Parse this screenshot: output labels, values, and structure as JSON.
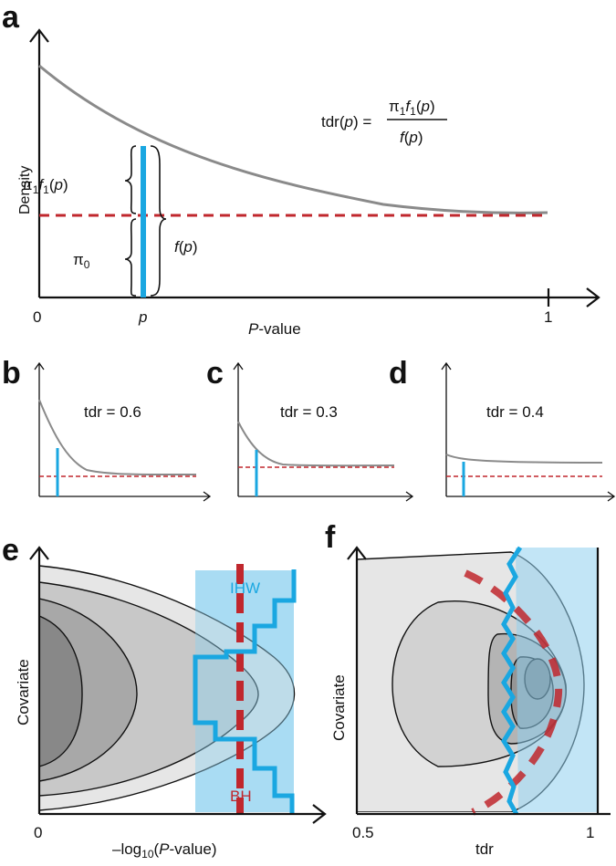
{
  "panels": {
    "a": {
      "letter": "a",
      "formula_lhs": "tdr(p) =",
      "formula_num": "π1f1(p)",
      "formula_den": "f(p)",
      "label_pi1f1": "π1f1(p)",
      "label_pi0": "π0",
      "label_fp": "f(p)",
      "ylabel": "Density",
      "xlabel": "P-value",
      "tick_0": "0",
      "tick_p": "p",
      "tick_1": "1"
    },
    "b": {
      "letter": "b",
      "tdr_text": "tdr = 0.6"
    },
    "c": {
      "letter": "c",
      "tdr_text": "tdr = 0.3"
    },
    "d": {
      "letter": "d",
      "tdr_text": "tdr = 0.4"
    },
    "e": {
      "letter": "e",
      "ylabel": "Covariate",
      "xlabel": "–log10(P-value)",
      "tick_0": "0",
      "label_ihw": "IHW",
      "label_bh": "BH"
    },
    "f": {
      "letter": "f",
      "ylabel": "Covariate",
      "xlabel": "tdr",
      "tick_05": "0.5",
      "tick_1": "1"
    }
  },
  "colors": {
    "curve": "#8a8a8a",
    "null_line": "#c0272d",
    "blue": "#1aa7e1",
    "light_blue": "#bfe6f7",
    "contour_1": "#e6e6e6",
    "contour_2": "#c8c8c8",
    "contour_3": "#a8a8a8",
    "contour_4": "#888888"
  }
}
